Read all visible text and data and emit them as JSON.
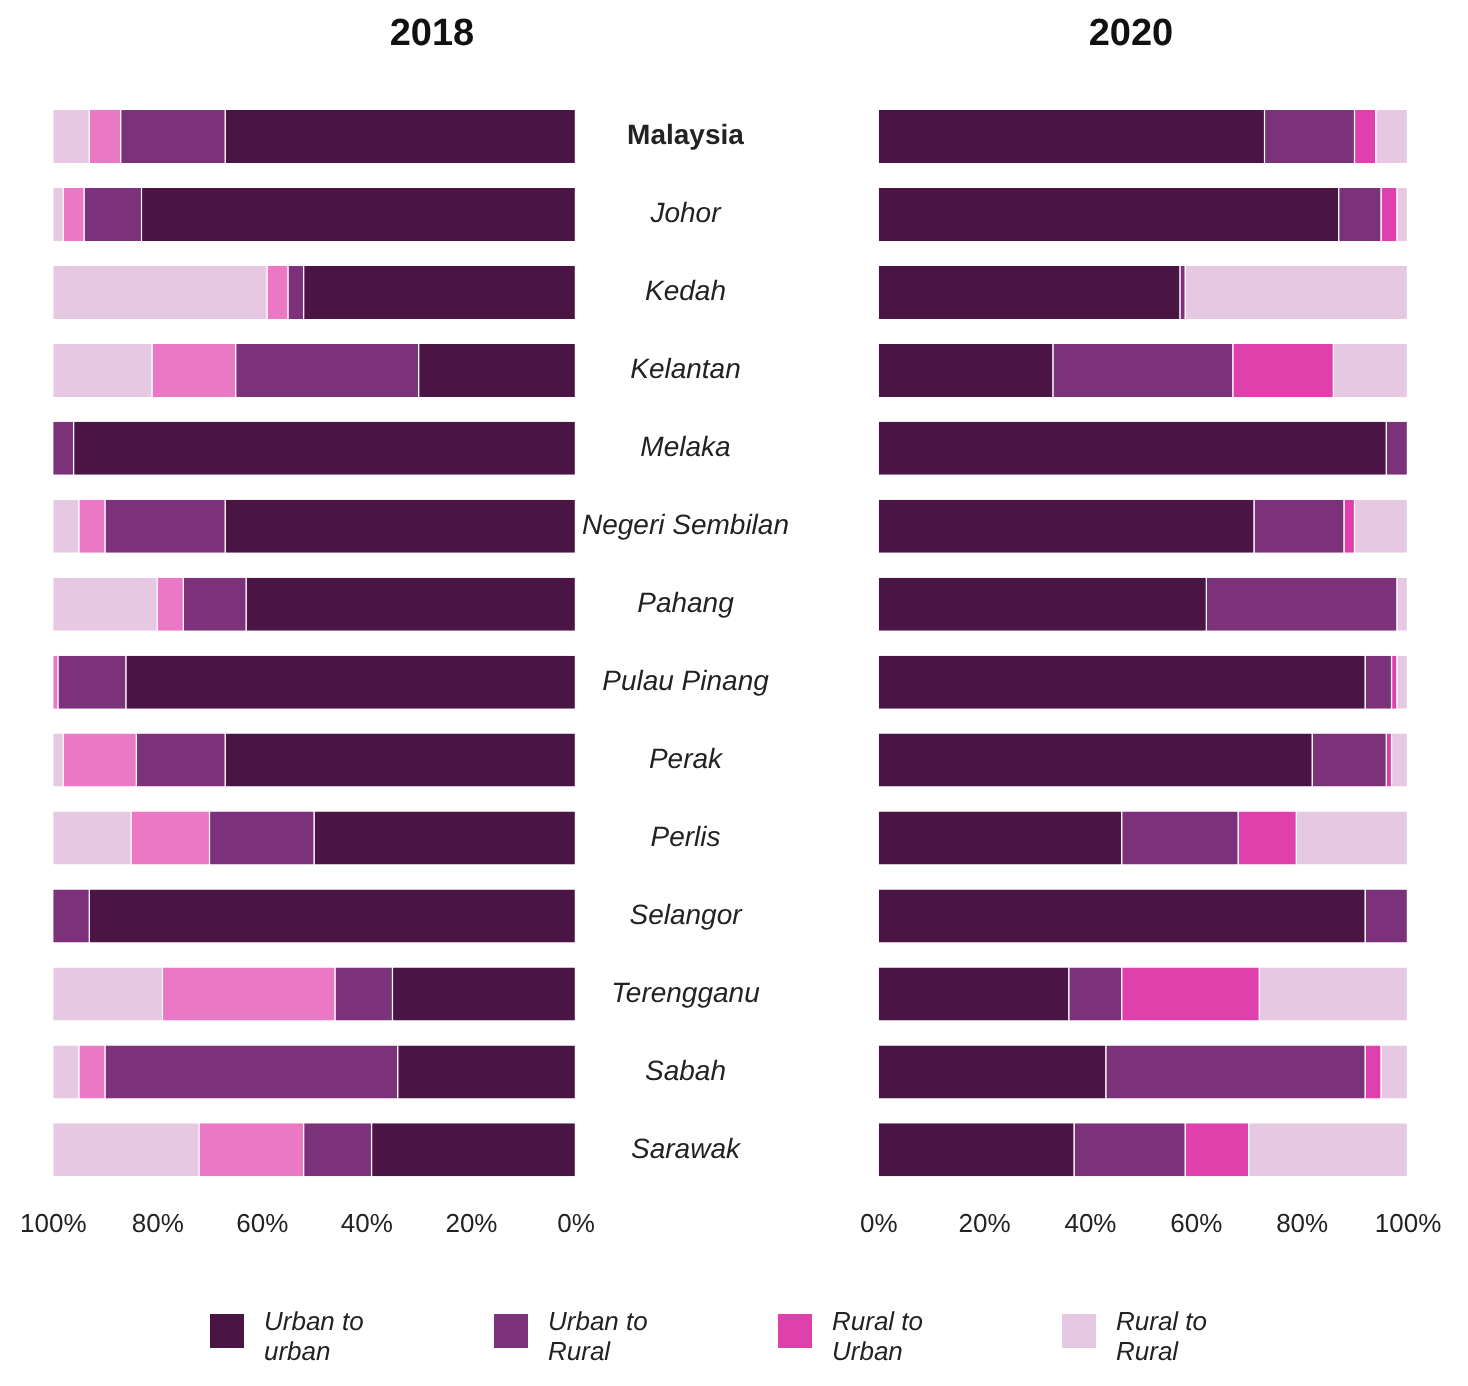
{
  "chart_data": [
    {
      "type": "bar",
      "title": "2018",
      "orientation": "horizontal",
      "stacked": true,
      "categories": [
        "Malaysia",
        "Johor",
        "Kedah",
        "Kelantan",
        "Melaka",
        "Negeri Sembilan",
        "Pahang",
        "Pulau Pinang",
        "Perak",
        "Perlis",
        "Selangor",
        "Terengganu",
        "Sabah",
        "Sarawak"
      ],
      "series": [
        {
          "color": "#4a1545",
          "values": [
            67,
            83,
            52,
            30,
            96,
            67,
            63,
            86,
            67,
            50,
            93,
            35,
            34,
            39
          ]
        },
        {
          "color": "#7b327a",
          "values": [
            20,
            11,
            3,
            35,
            4,
            23,
            12,
            13,
            17,
            20,
            7,
            11,
            56,
            13
          ]
        },
        {
          "color": "#ea78c4",
          "values": [
            6,
            4,
            4,
            16,
            0,
            5,
            5,
            1,
            14,
            15,
            0,
            33,
            5,
            20
          ]
        },
        {
          "color": "#e6c8e3",
          "values": [
            7,
            2,
            41,
            19,
            0,
            5,
            20,
            0,
            2,
            15,
            0,
            21,
            5,
            28
          ]
        }
      ],
      "xlim": [
        100,
        0
      ],
      "xticks": [
        {
          "value": 100,
          "label": "100%"
        },
        {
          "value": 80,
          "label": "80%"
        },
        {
          "value": 60,
          "label": "60%"
        },
        {
          "value": 40,
          "label": "40%"
        },
        {
          "value": 20,
          "label": "20%"
        },
        {
          "value": 0,
          "label": "0%"
        }
      ],
      "grid": false
    },
    {
      "type": "bar",
      "title": "2020",
      "orientation": "horizontal",
      "stacked": true,
      "categories": [
        null,
        null,
        null,
        null,
        null,
        null,
        null,
        null,
        null,
        null,
        null,
        null,
        null,
        null
      ],
      "series": [
        {
          "name": "Urban to urban",
          "color": "#4a1545",
          "values": [
            73,
            87,
            57,
            33,
            96,
            71,
            62,
            92,
            82,
            46,
            92,
            36,
            43,
            37
          ]
        },
        {
          "name": "Urban to Rural",
          "color": "#7b327a",
          "values": [
            17,
            8,
            1,
            34,
            4,
            17,
            36,
            5,
            14,
            22,
            8,
            10,
            49,
            21
          ]
        },
        {
          "name": "Rural to Urban",
          "color": "#e040ab",
          "values": [
            4,
            3,
            0,
            19,
            0,
            2,
            0,
            1,
            1,
            11,
            0,
            26,
            3,
            12
          ]
        },
        {
          "name": "Rural to Rural",
          "color": "#e6c8e3",
          "values": [
            6,
            2,
            42,
            14,
            0,
            10,
            2,
            2,
            3,
            21,
            0,
            28,
            5,
            30
          ]
        }
      ],
      "xlim": [
        0,
        100
      ],
      "xticks": [
        {
          "value": 0,
          "label": "0%"
        },
        {
          "value": 20,
          "label": "20%"
        },
        {
          "value": 40,
          "label": "40%"
        },
        {
          "value": 60,
          "label": "60%"
        },
        {
          "value": 80,
          "label": "80%"
        },
        {
          "value": 100,
          "label": "100%"
        }
      ],
      "grid": false,
      "legend": "bottom"
    }
  ]
}
